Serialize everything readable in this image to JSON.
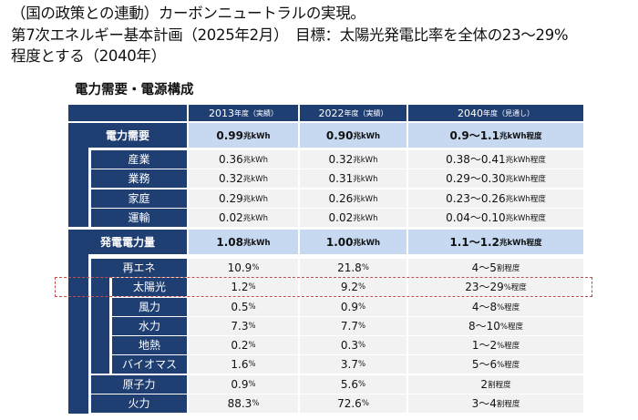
{
  "heading": {
    "line1": "（国の政策との連動）カーボンニュートラルの実現。",
    "line2": "第7次エネルギー基本計画（2025年2月）　目標：太陽光発電比率を全体の23～29%",
    "line3": "程度とする（2040年）"
  },
  "table_title": "電力需要・電源構成",
  "columns": [
    {
      "year": "2013",
      "suffix": "年度（実績）"
    },
    {
      "year": "2022",
      "suffix": "年度（実績）"
    },
    {
      "year": "2040",
      "suffix": "年度（見通し）"
    }
  ],
  "rows": [
    {
      "label": "電力需要",
      "level": 0,
      "main": true,
      "values": [
        {
          "n": "0.99",
          "u": "兆kWh"
        },
        {
          "n": "0.90",
          "u": "兆kWh"
        },
        {
          "n": "0.9～1.1",
          "u": "兆kWh程度"
        }
      ]
    },
    {
      "label": "産業",
      "level": 1,
      "values": [
        {
          "n": "0.36",
          "u": "兆kWh"
        },
        {
          "n": "0.32",
          "u": "兆kWh"
        },
        {
          "n": "0.38～0.41",
          "u": "兆kWh程度"
        }
      ]
    },
    {
      "label": "業務",
      "level": 1,
      "values": [
        {
          "n": "0.32",
          "u": "兆kWh"
        },
        {
          "n": "0.31",
          "u": "兆kWh"
        },
        {
          "n": "0.29～0.30",
          "u": "兆kWh程度"
        }
      ]
    },
    {
      "label": "家庭",
      "level": 1,
      "values": [
        {
          "n": "0.29",
          "u": "兆kWh"
        },
        {
          "n": "0.26",
          "u": "兆kWh"
        },
        {
          "n": "0.23～0.26",
          "u": "兆kWh程度"
        }
      ]
    },
    {
      "label": "運輸",
      "level": 1,
      "values": [
        {
          "n": "0.02",
          "u": "兆kWh"
        },
        {
          "n": "0.02",
          "u": "兆kWh"
        },
        {
          "n": "0.04～0.10",
          "u": "兆kWh程度"
        }
      ]
    },
    {
      "label": "発電電力量",
      "level": 0,
      "main": true,
      "values": [
        {
          "n": "1.08",
          "u": "兆kWh"
        },
        {
          "n": "1.00",
          "u": "兆kWh"
        },
        {
          "n": "1.1～1.2",
          "u": "兆kWh程度"
        }
      ]
    },
    {
      "label": "再エネ",
      "level": 1,
      "values": [
        {
          "n": "10.9",
          "u": "%"
        },
        {
          "n": "21.8",
          "u": "%"
        },
        {
          "n": "4～5",
          "u": "割程度"
        }
      ]
    },
    {
      "label": "太陽光",
      "level": 2,
      "highlight": true,
      "values": [
        {
          "n": "1.2",
          "u": "%"
        },
        {
          "n": "9.2",
          "u": "%"
        },
        {
          "n": "23～29",
          "u": "%程度"
        }
      ]
    },
    {
      "label": "風力",
      "level": 2,
      "values": [
        {
          "n": "0.5",
          "u": "%"
        },
        {
          "n": "0.9",
          "u": "%"
        },
        {
          "n": "4～8",
          "u": "%程度"
        }
      ]
    },
    {
      "label": "水力",
      "level": 2,
      "values": [
        {
          "n": "7.3",
          "u": "%"
        },
        {
          "n": "7.7",
          "u": "%"
        },
        {
          "n": "8～10",
          "u": "%程度"
        }
      ]
    },
    {
      "label": "地熱",
      "level": 2,
      "values": [
        {
          "n": "0.2",
          "u": "%"
        },
        {
          "n": "0.3",
          "u": "%"
        },
        {
          "n": "1～2",
          "u": "%程度"
        }
      ]
    },
    {
      "label": "バイオマス",
      "level": 2,
      "values": [
        {
          "n": "1.6",
          "u": "%"
        },
        {
          "n": "3.7",
          "u": "%"
        },
        {
          "n": "5～6",
          "u": "%程度"
        }
      ]
    },
    {
      "label": "原子力",
      "level": 1,
      "values": [
        {
          "n": "0.9",
          "u": "%"
        },
        {
          "n": "5.6",
          "u": "%"
        },
        {
          "n": "2",
          "u": "割程度"
        }
      ]
    },
    {
      "label": "火力",
      "level": 1,
      "values": [
        {
          "n": "88.3",
          "u": "%"
        },
        {
          "n": "72.6",
          "u": "%"
        },
        {
          "n": "3～4",
          "u": "割程度"
        }
      ]
    }
  ],
  "colors": {
    "header": "#1f3f73",
    "main_row": "#c6d9f0",
    "row": "#f2f2f2",
    "highlight_border": "#c0504d"
  }
}
